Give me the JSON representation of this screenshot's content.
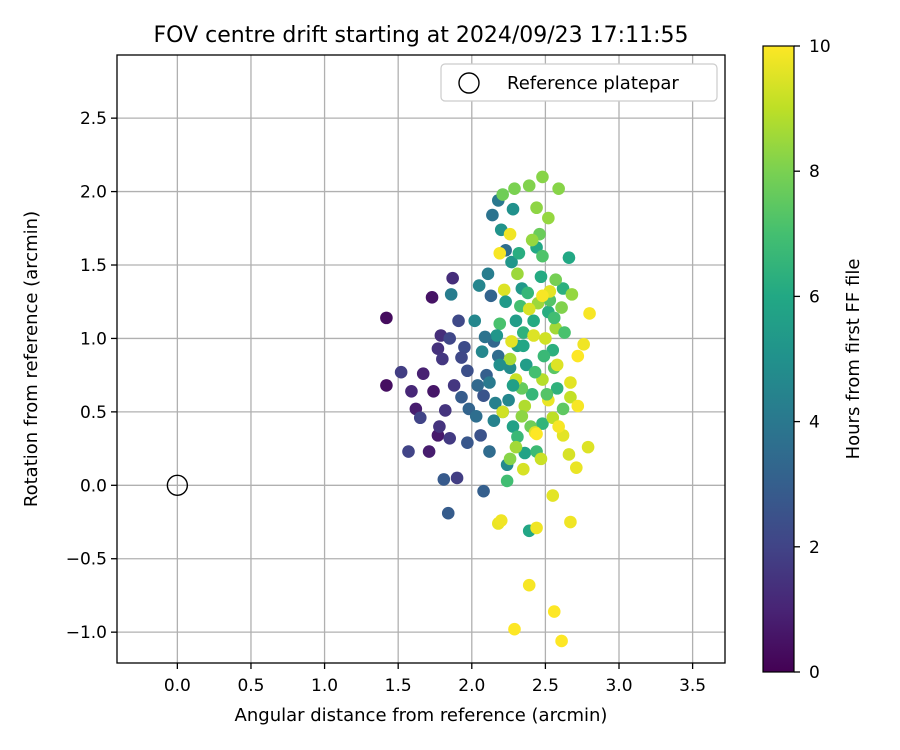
{
  "chart_data": {
    "type": "scatter",
    "title": "FOV centre drift starting at 2024/09/23 17:11:55",
    "xlabel": "Angular distance from reference (arcmin)",
    "ylabel": "Rotation from reference (arcmin)",
    "xlim": [
      -0.41,
      3.72
    ],
    "ylim": [
      -1.21,
      2.93
    ],
    "xticks": [
      "0.0",
      "0.5",
      "1.0",
      "1.5",
      "2.0",
      "2.5",
      "3.0",
      "3.5"
    ],
    "yticks": [
      "−1.0",
      "−0.5",
      "0.0",
      "0.5",
      "1.0",
      "1.5",
      "2.0",
      "2.5"
    ],
    "grid": true,
    "legend": {
      "placement": "top-right",
      "entries": [
        "Reference platepar"
      ]
    },
    "colorbar": {
      "label": "Hours from first FF file",
      "range": [
        0,
        10
      ],
      "ticks": [
        "0",
        "2",
        "4",
        "6",
        "8",
        "10"
      ],
      "colormap": "viridis"
    },
    "reference_point": {
      "label": "Reference platepar",
      "x": 0.0,
      "y": 0.0
    },
    "series": [
      {
        "points": [
          [
            1.42,
            1.14,
            0.3
          ],
          [
            1.42,
            0.68,
            0.4
          ],
          [
            1.73,
            1.28,
            0.5
          ],
          [
            1.74,
            0.64,
            0.6
          ],
          [
            1.71,
            0.23,
            0.8
          ],
          [
            1.67,
            0.76,
            0.9
          ],
          [
            1.62,
            0.52,
            0.8
          ],
          [
            1.77,
            0.34,
            0.7
          ],
          [
            1.59,
            0.64,
            1.1
          ],
          [
            1.87,
            1.41,
            1.3
          ],
          [
            1.79,
            1.02,
            1.3
          ],
          [
            1.77,
            0.93,
            1.4
          ],
          [
            1.82,
            0.51,
            1.5
          ],
          [
            1.78,
            0.4,
            1.5
          ],
          [
            1.8,
            0.86,
            1.6
          ],
          [
            1.88,
            0.68,
            1.6
          ],
          [
            1.85,
            0.32,
            1.7
          ],
          [
            1.9,
            0.05,
            1.8
          ],
          [
            1.52,
            0.77,
            1.8
          ],
          [
            1.57,
            0.23,
            2.0
          ],
          [
            1.65,
            0.46,
            2.0
          ],
          [
            1.85,
            1.0,
            2.1
          ],
          [
            1.91,
            1.12,
            2.2
          ],
          [
            1.95,
            0.94,
            2.3
          ],
          [
            1.97,
            0.78,
            2.4
          ],
          [
            2.08,
            0.61,
            2.6
          ],
          [
            1.81,
            0.04,
            2.8
          ],
          [
            1.84,
            -0.19,
            2.9
          ],
          [
            1.93,
            0.87,
            2.2
          ],
          [
            2.06,
            0.34,
            2.5
          ],
          [
            2.08,
            -0.04,
            3.0
          ],
          [
            2.1,
            0.75,
            3.0
          ],
          [
            2.13,
            1.29,
            3.2
          ],
          [
            2.15,
            0.98,
            3.3
          ],
          [
            2.18,
            0.88,
            3.5
          ],
          [
            2.04,
            0.68,
            3.4
          ],
          [
            1.98,
            0.52,
            3.2
          ],
          [
            2.12,
            0.23,
            3.5
          ],
          [
            2.23,
            1.6,
            3.6
          ],
          [
            2.14,
            1.84,
            3.8
          ],
          [
            2.18,
            1.94,
            4.0
          ],
          [
            2.11,
            1.44,
            4.2
          ],
          [
            2.16,
            0.56,
            4.3
          ],
          [
            2.05,
            1.36,
            4.5
          ],
          [
            1.86,
            1.3,
            4.2
          ],
          [
            2.02,
            1.12,
            4.6
          ],
          [
            2.07,
            0.91,
            4.6
          ],
          [
            2.25,
            0.58,
            4.6
          ],
          [
            2.24,
            0.14,
            4.7
          ],
          [
            2.21,
            0.5,
            4.6
          ],
          [
            2.26,
            0.8,
            4.8
          ],
          [
            2.28,
            1.88,
            5.0
          ],
          [
            2.2,
            1.74,
            5.1
          ],
          [
            2.27,
            1.52,
            5.2
          ],
          [
            2.34,
            1.34,
            5.3
          ],
          [
            2.3,
            1.12,
            5.5
          ],
          [
            2.31,
            0.95,
            5.6
          ],
          [
            2.37,
            0.82,
            5.5
          ],
          [
            2.28,
            0.4,
            5.7
          ],
          [
            2.36,
            0.22,
            5.8
          ],
          [
            2.39,
            -0.31,
            5.9
          ],
          [
            2.44,
            1.62,
            6.0
          ],
          [
            2.47,
            1.42,
            6.1
          ],
          [
            2.52,
            1.18,
            6.2
          ],
          [
            2.55,
            0.92,
            6.3
          ],
          [
            2.58,
            0.66,
            6.4
          ],
          [
            2.48,
            0.42,
            6.5
          ],
          [
            2.66,
            1.55,
            6.0
          ],
          [
            2.62,
            1.34,
            6.3
          ],
          [
            2.35,
            1.04,
            6.4
          ],
          [
            2.41,
            0.62,
            6.6
          ],
          [
            2.31,
            0.33,
            6.7
          ],
          [
            2.44,
            0.23,
            6.8
          ],
          [
            2.24,
            0.03,
            6.9
          ],
          [
            2.33,
            1.22,
            7.0
          ],
          [
            2.19,
            1.1,
            7.1
          ],
          [
            2.48,
            1.56,
            7.2
          ],
          [
            2.53,
            1.26,
            7.3
          ],
          [
            2.56,
            0.8,
            7.4
          ],
          [
            2.62,
            0.52,
            7.5
          ],
          [
            2.34,
            0.66,
            7.6
          ],
          [
            2.4,
            0.4,
            7.8
          ],
          [
            2.46,
            1.71,
            7.7
          ],
          [
            2.21,
            1.98,
            7.8
          ],
          [
            2.29,
            2.02,
            8.0
          ],
          [
            2.39,
            2.04,
            8.1
          ],
          [
            2.48,
            2.1,
            8.2
          ],
          [
            2.59,
            2.02,
            8.2
          ],
          [
            2.44,
            1.89,
            8.3
          ],
          [
            2.52,
            1.82,
            8.4
          ],
          [
            2.41,
            1.67,
            8.4
          ],
          [
            2.31,
            1.44,
            8.5
          ],
          [
            2.45,
            1.24,
            8.5
          ],
          [
            2.57,
            1.07,
            8.6
          ],
          [
            2.68,
            1.3,
            8.4
          ],
          [
            2.26,
            0.86,
            8.7
          ],
          [
            2.36,
            0.54,
            8.8
          ],
          [
            2.48,
            0.72,
            8.9
          ],
          [
            2.55,
            0.46,
            9.0
          ],
          [
            2.67,
            0.6,
            9.1
          ],
          [
            2.3,
            0.72,
            9.2
          ],
          [
            2.21,
            0.5,
            9.3
          ],
          [
            2.35,
            0.11,
            9.4
          ],
          [
            2.42,
            1.02,
            9.5
          ],
          [
            2.53,
            1.32,
            9.6
          ],
          [
            2.22,
            1.33,
            9.5
          ],
          [
            2.27,
            0.98,
            9.6
          ],
          [
            2.39,
            1.2,
            9.4
          ],
          [
            2.5,
            1.0,
            9.3
          ],
          [
            2.58,
            0.82,
            9.5
          ],
          [
            2.62,
            0.34,
            9.6
          ],
          [
            2.66,
            0.21,
            9.4
          ],
          [
            2.43,
            0.36,
            9.5
          ],
          [
            2.18,
            -0.26,
            9.7
          ],
          [
            2.2,
            -0.24,
            9.8
          ],
          [
            2.44,
            -0.29,
            9.8
          ],
          [
            2.55,
            -0.07,
            9.6
          ],
          [
            2.67,
            -0.25,
            9.8
          ],
          [
            2.71,
            0.12,
            9.7
          ],
          [
            2.79,
            0.26,
            9.5
          ],
          [
            2.72,
            0.54,
            9.9
          ],
          [
            2.76,
            0.96,
            9.8
          ],
          [
            2.8,
            1.17,
            9.9
          ],
          [
            2.72,
            0.88,
            10.0
          ],
          [
            2.39,
            -0.68,
            9.9
          ],
          [
            2.56,
            -0.86,
            10.0
          ],
          [
            2.61,
            -1.06,
            10.0
          ],
          [
            2.29,
            -0.98,
            10.0
          ],
          [
            2.19,
            1.58,
            9.9
          ],
          [
            2.26,
            1.71,
            9.8
          ],
          [
            2.48,
            1.29,
            9.9
          ],
          [
            2.44,
            0.35,
            10.0
          ],
          [
            2.52,
            0.58,
            9.7
          ],
          [
            2.59,
            0.4,
            9.9
          ],
          [
            2.67,
            0.7,
            9.6
          ],
          [
            2.17,
            1.02,
            5.2
          ],
          [
            2.23,
            1.25,
            5.4
          ],
          [
            2.28,
            0.68,
            5.6
          ],
          [
            2.35,
            0.95,
            5.9
          ],
          [
            2.42,
            1.12,
            6.1
          ],
          [
            2.49,
            0.88,
            6.7
          ],
          [
            2.56,
            1.14,
            6.9
          ],
          [
            2.63,
            1.04,
            7.1
          ],
          [
            2.12,
            0.7,
            4.1
          ],
          [
            2.09,
            1.01,
            3.8
          ],
          [
            2.03,
            0.47,
            3.6
          ],
          [
            1.97,
            0.29,
            2.7
          ],
          [
            1.93,
            0.6,
            2.9
          ],
          [
            2.15,
            0.44,
            4.4
          ],
          [
            2.19,
            0.82,
            4.9
          ],
          [
            2.32,
            1.58,
            6.2
          ],
          [
            2.38,
            1.31,
            6.6
          ],
          [
            2.43,
            0.77,
            7.0
          ],
          [
            2.51,
            0.62,
            7.3
          ],
          [
            2.57,
            1.4,
            7.9
          ],
          [
            2.61,
            1.21,
            8.1
          ],
          [
            2.34,
            0.47,
            8.3
          ],
          [
            2.3,
            0.26,
            8.6
          ],
          [
            2.26,
            0.18,
            8.2
          ],
          [
            2.47,
            0.18,
            9.2
          ]
        ]
      }
    ]
  }
}
